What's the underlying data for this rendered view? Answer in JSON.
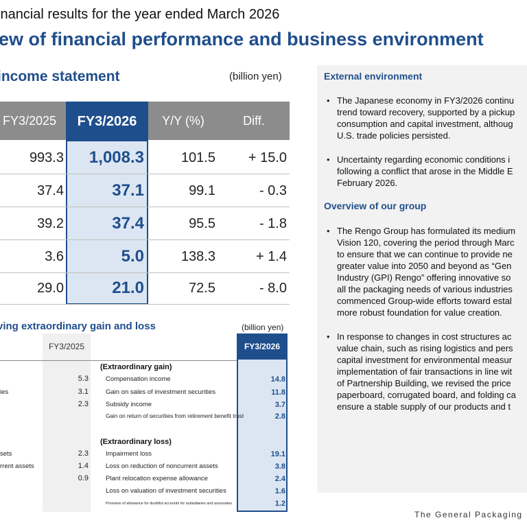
{
  "header": {
    "subtitle": "inancial results for the year ended March 2026",
    "title": "ew of financial performance and business environment"
  },
  "income": {
    "heading": "income statement",
    "unit": "(billion yen)",
    "columns": [
      "FY3/2025",
      "FY3/2026",
      "Y/Y (%)",
      "Diff."
    ],
    "rows": [
      {
        "prev": "993.3",
        "curr": "1,008.3",
        "yy": "101.5",
        "diff": "+ 15.0"
      },
      {
        "prev": "37.4",
        "curr": "37.1",
        "yy": "99.1",
        "diff": "- 0.3"
      },
      {
        "prev": "39.2",
        "curr": "37.4",
        "yy": "95.5",
        "diff": "- 1.8"
      },
      {
        "prev": "3.6",
        "curr": "5.0",
        "yy": "138.3",
        "diff": "+ 1.4"
      },
      {
        "prev": "29.0",
        "curr": "21.0",
        "yy": "72.5",
        "diff": "- 8.0"
      }
    ]
  },
  "extraordinary": {
    "heading": "ving extraordinary gain and loss",
    "unit": "(billion yen)",
    "prev_header": "FY3/2025",
    "curr_header": "FY3/2026",
    "left_rows": [
      {
        "label": "",
        "value": "5.3"
      },
      {
        "label": "ies",
        "value": "3.1"
      },
      {
        "label": "",
        "value": "2.3"
      },
      {
        "label": "sets",
        "value": "2.3"
      },
      {
        "label": "rrent assets",
        "value": "1.4"
      },
      {
        "label": "",
        "value": "0.9"
      }
    ],
    "gain_title": "(Extraordinary gain)",
    "gain_items": [
      {
        "label": "Compensation income",
        "value": "14.8"
      },
      {
        "label": "Gain on sales of investment securities",
        "value": "11.8"
      },
      {
        "label": "Subsidy income",
        "value": "3.7"
      },
      {
        "label": "Gain on return of securities from retirement benefit trust",
        "value": "2.8"
      }
    ],
    "loss_title": "(Extraordinary loss)",
    "loss_items": [
      {
        "label": "Impairment loss",
        "value": "19.1"
      },
      {
        "label": "Loss on reduction of noncurrent assets",
        "value": "3.8"
      },
      {
        "label": "Plant relocation expense allowance",
        "value": "2.4"
      },
      {
        "label": "Loss on valuation of investment securities",
        "value": "1.6"
      },
      {
        "label": "Provision of allowance for doubtful accounts for subsidiaries and associates",
        "value": "1.2"
      }
    ]
  },
  "panel": {
    "external_heading": "External environment",
    "external_bullets": [
      [
        "The Japanese economy in FY3/2026 continu",
        "trend toward recovery, supported by a pickup",
        "consumption and capital investment, althoug",
        "U.S. trade policies persisted."
      ],
      [
        "Uncertainty regarding economic conditions i",
        "following a conflict that arose in the Middle E",
        "February 2026."
      ]
    ],
    "group_heading": "Overview of our group",
    "group_bullets": [
      [
        "The Rengo Group has formulated its medium",
        "Vision 120, covering the period through Marc",
        "to ensure that we can continue to provide ne",
        "greater value into 2050 and beyond as “Gen",
        "Industry (GPI) Rengo” offering innovative so",
        "all the packaging needs of various industries",
        "commenced Group-wide efforts toward estal",
        "more robust foundation for value creation."
      ],
      [
        "In response to changes in cost structures ac",
        "value chain, such as rising logistics and pers",
        "capital investment for environmental measur",
        "implementation of fair transactions in line wit",
        "of Partnership Building, we revised the price",
        "paperboard, corrugated board, and folding ca",
        "ensure a stable supply of our products and t"
      ]
    ]
  },
  "footer": {
    "brand": "The General Packaging"
  },
  "colors": {
    "accent": "#1f4e8c",
    "highlight": "#dce6f2",
    "header_gray": "#8c8c8c",
    "panel_bg": "#f2f2f2"
  }
}
